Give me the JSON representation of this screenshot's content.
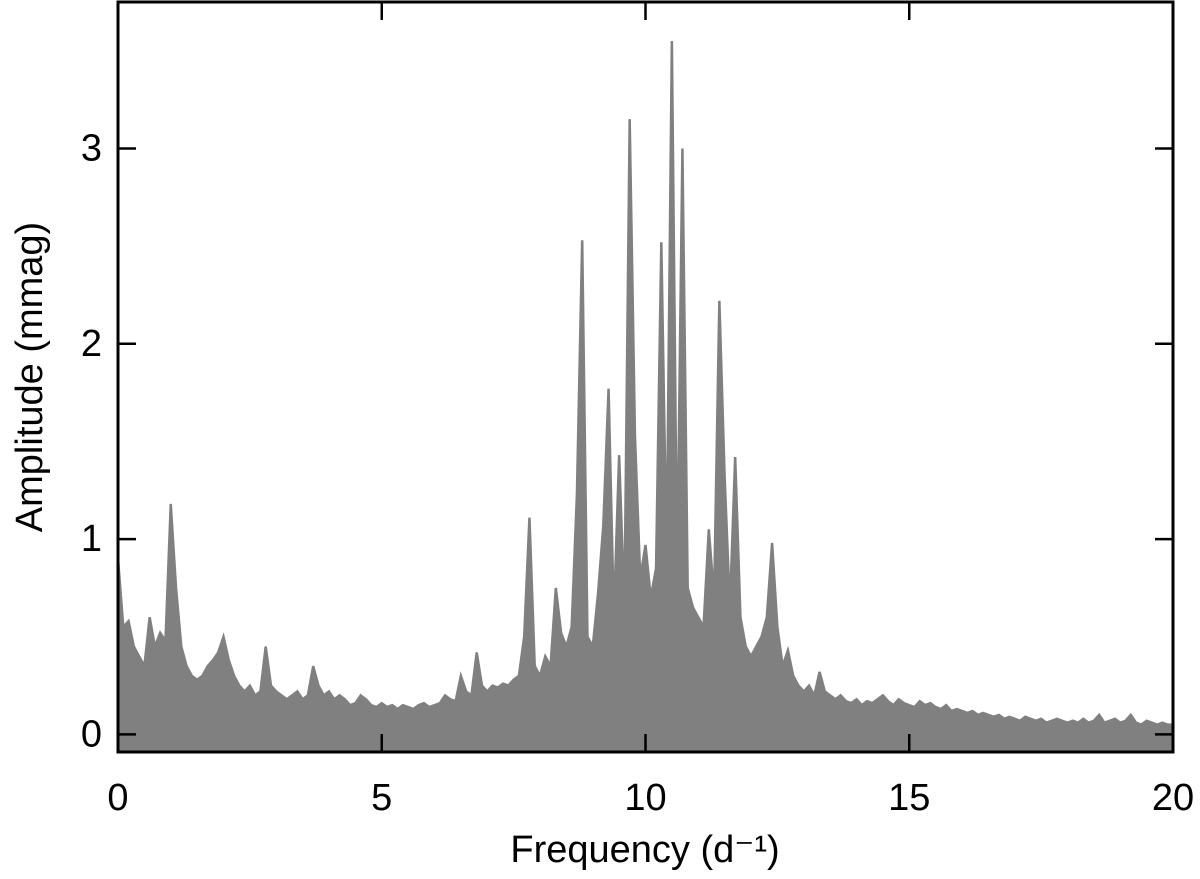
{
  "chart_data": {
    "type": "area",
    "x_label": "Frequency (d⁻¹)",
    "y_label": "Amplitude (mmag)",
    "color": "#808080",
    "xlim": [
      0,
      20
    ],
    "xticks": [
      0,
      5,
      10,
      15,
      20
    ],
    "ylim": [
      -0.09,
      3.75
    ],
    "yticks": [
      0,
      1,
      2,
      3
    ],
    "x": [
      0,
      0.1,
      0.2,
      0.3,
      0.4,
      0.5,
      0.6,
      0.7,
      0.8,
      0.9,
      1,
      1.1,
      1.2,
      1.3,
      1.4,
      1.5,
      1.6,
      1.7,
      1.8,
      1.9,
      2,
      2.1,
      2.2,
      2.3,
      2.4,
      2.5,
      2.6,
      2.7,
      2.8,
      2.9,
      3,
      3.1,
      3.2,
      3.3,
      3.4,
      3.5,
      3.6,
      3.7,
      3.8,
      3.9,
      4,
      4.1,
      4.2,
      4.3,
      4.4,
      4.5,
      4.6,
      4.7,
      4.8,
      4.9,
      5,
      5.1,
      5.2,
      5.3,
      5.4,
      5.5,
      5.6,
      5.7,
      5.8,
      5.9,
      6,
      6.1,
      6.2,
      6.3,
      6.4,
      6.5,
      6.6,
      6.7,
      6.8,
      6.9,
      7,
      7.1,
      7.2,
      7.3,
      7.4,
      7.5,
      7.6,
      7.7,
      7.8,
      7.9,
      8,
      8.1,
      8.2,
      8.3,
      8.4,
      8.5,
      8.6,
      8.7,
      8.8,
      8.9,
      9,
      9.1,
      9.2,
      9.3,
      9.4,
      9.5,
      9.6,
      9.7,
      9.8,
      9.9,
      10,
      10.1,
      10.2,
      10.3,
      10.4,
      10.5,
      10.6,
      10.7,
      10.8,
      10.9,
      11,
      11.1,
      11.2,
      11.3,
      11.4,
      11.5,
      11.6,
      11.7,
      11.8,
      11.9,
      12,
      12.1,
      12.2,
      12.3,
      12.4,
      12.5,
      12.6,
      12.7,
      12.8,
      12.9,
      13,
      13.1,
      13.2,
      13.3,
      13.4,
      13.5,
      13.6,
      13.7,
      13.8,
      13.9,
      14,
      14.1,
      14.2,
      14.3,
      14.4,
      14.5,
      14.6,
      14.7,
      14.8,
      14.9,
      15,
      15.1,
      15.2,
      15.3,
      15.4,
      15.5,
      15.6,
      15.7,
      15.8,
      15.9,
      16,
      16.1,
      16.2,
      16.3,
      16.4,
      16.5,
      16.6,
      16.7,
      16.8,
      16.9,
      17,
      17.1,
      17.2,
      17.3,
      17.4,
      17.5,
      17.6,
      17.7,
      17.8,
      17.9,
      18,
      18.1,
      18.2,
      18.3,
      18.4,
      18.5,
      18.6,
      18.7,
      18.8,
      18.9,
      19,
      19.1,
      19.2,
      19.3,
      19.4,
      19.5,
      19.6,
      19.7,
      19.8,
      19.9,
      20
    ],
    "values": [
      0.9,
      0.55,
      0.58,
      0.45,
      0.4,
      0.35,
      0.6,
      0.45,
      0.52,
      0.48,
      1.18,
      0.75,
      0.45,
      0.35,
      0.3,
      0.28,
      0.3,
      0.35,
      0.38,
      0.42,
      0.5,
      0.38,
      0.3,
      0.25,
      0.22,
      0.25,
      0.2,
      0.22,
      0.45,
      0.25,
      0.22,
      0.2,
      0.18,
      0.2,
      0.22,
      0.18,
      0.2,
      0.35,
      0.25,
      0.2,
      0.22,
      0.18,
      0.2,
      0.18,
      0.15,
      0.16,
      0.2,
      0.18,
      0.15,
      0.14,
      0.16,
      0.14,
      0.15,
      0.13,
      0.15,
      0.14,
      0.13,
      0.15,
      0.16,
      0.14,
      0.15,
      0.16,
      0.2,
      0.18,
      0.17,
      0.3,
      0.22,
      0.2,
      0.42,
      0.25,
      0.22,
      0.25,
      0.24,
      0.26,
      0.25,
      0.28,
      0.3,
      0.5,
      1.11,
      0.35,
      0.3,
      0.4,
      0.35,
      0.75,
      0.52,
      0.45,
      0.55,
      1.23,
      2.53,
      0.5,
      0.45,
      0.72,
      1.07,
      1.77,
      0.6,
      1.43,
      0.65,
      3.15,
      1.53,
      0.8,
      0.97,
      0.7,
      0.85,
      2.52,
      0.9,
      3.55,
      0.8,
      3.0,
      0.75,
      0.65,
      0.6,
      0.55,
      1.05,
      0.7,
      2.22,
      1.32,
      0.65,
      1.42,
      0.6,
      0.45,
      0.4,
      0.45,
      0.5,
      0.6,
      0.98,
      0.55,
      0.35,
      0.43,
      0.3,
      0.25,
      0.22,
      0.25,
      0.2,
      0.32,
      0.22,
      0.2,
      0.18,
      0.2,
      0.17,
      0.16,
      0.18,
      0.15,
      0.17,
      0.16,
      0.18,
      0.2,
      0.17,
      0.15,
      0.18,
      0.16,
      0.15,
      0.14,
      0.17,
      0.15,
      0.16,
      0.14,
      0.13,
      0.15,
      0.12,
      0.13,
      0.12,
      0.11,
      0.12,
      0.1,
      0.11,
      0.1,
      0.09,
      0.1,
      0.08,
      0.09,
      0.08,
      0.07,
      0.09,
      0.08,
      0.07,
      0.08,
      0.06,
      0.07,
      0.08,
      0.07,
      0.06,
      0.07,
      0.06,
      0.08,
      0.06,
      0.07,
      0.1,
      0.06,
      0.07,
      0.08,
      0.06,
      0.07,
      0.1,
      0.06,
      0.05,
      0.07,
      0.06,
      0.05,
      0.06,
      0.05,
      0.05
    ]
  }
}
